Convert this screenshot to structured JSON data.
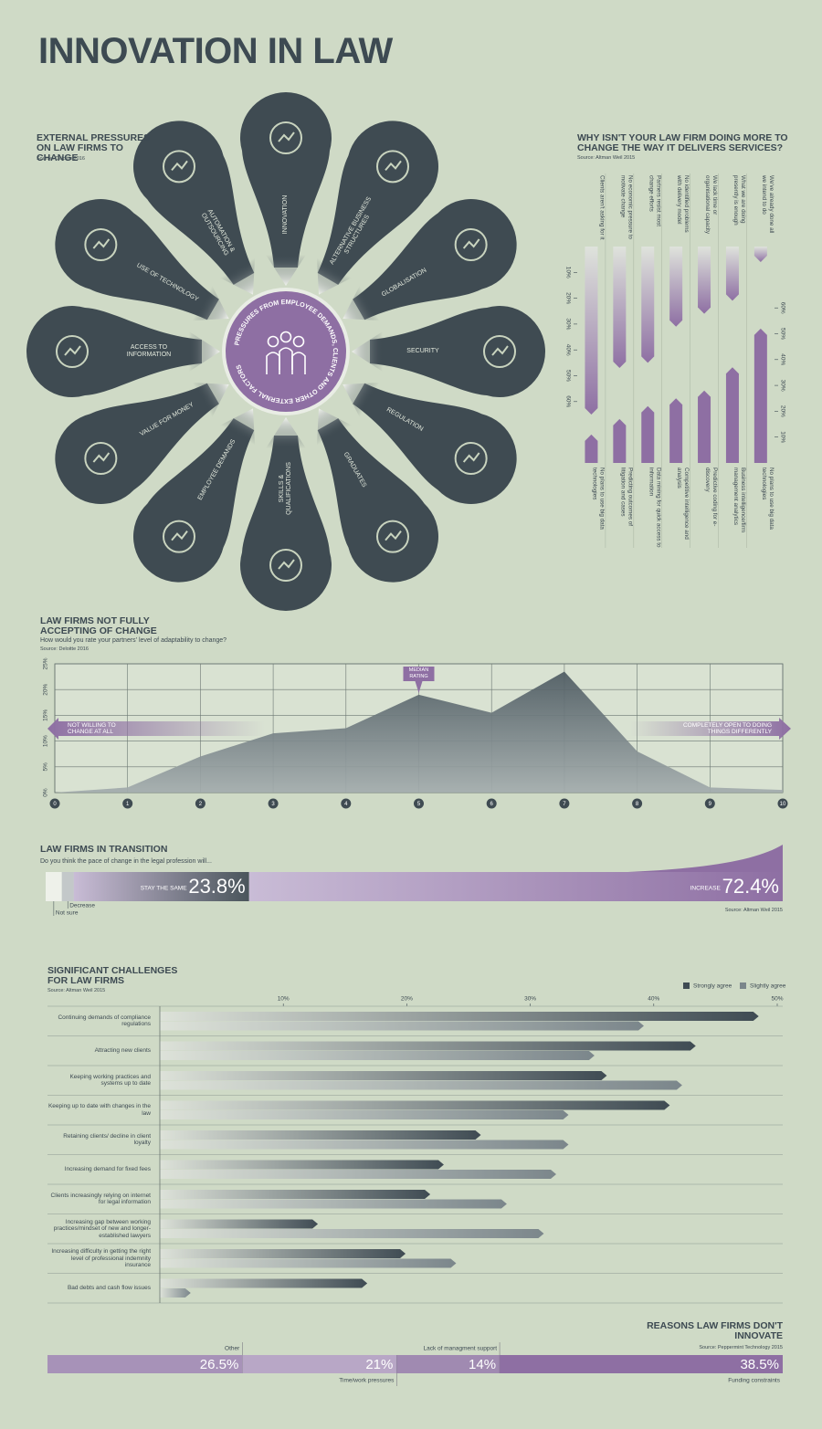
{
  "title": "INNOVATION IN LAW",
  "pressures": {
    "title": "EXTERNAL PRESSURES ON LAW FIRMS TO CHANGE",
    "source": "Source: Deloitte 2016",
    "center": "PRESSURES FROM EMPLOYEE DEMANDS, CLIENTS AND OTHER EXTERNAL FACTORS",
    "items": [
      "INNOVATION",
      "ALTERNATIVE BUSINESS STRUCTURES",
      "GLOBALISATION",
      "SECURITY",
      "REGULATION",
      "GRADUATES",
      "SKILLS & QUALIFICATIONS",
      "EMPLOYEE DEMANDS",
      "VALUE FOR MONEY",
      "ACCESS TO INFORMATION",
      "USE OF TECHNOLOGY",
      "AUTOMATION & OUTSOURCING"
    ]
  },
  "chart_data": [
    {
      "type": "diverging_bar",
      "title": "WHY ISN'T YOUR LAW FIRM DOING MORE TO CHANGE THE WAY IT DELIVERS SERVICES?",
      "source": "Source: Altman Weil 2015",
      "categories": [
        "Clients aren't asking for it",
        "No economic pressure to motivate change",
        "Partners resist most change efforts",
        "No identified problems with delivery model",
        "We lack time or organisational capacity",
        "What we are doing presently is enough",
        "We've already done all we intend to do"
      ],
      "values": [
        65,
        47,
        45,
        31,
        26,
        21,
        6
      ],
      "color": "#8e6fa3",
      "ylim": [
        0,
        70
      ],
      "yticks": [
        {
          "value": 10,
          "label": "10%"
        },
        {
          "value": 20,
          "label": "20%"
        },
        {
          "value": 30,
          "label": "30%"
        },
        {
          "value": 40,
          "label": "40%"
        },
        {
          "value": 50,
          "label": "50%"
        },
        {
          "value": 60,
          "label": "60%"
        }
      ],
      "categories2": [
        "No plans to use big data technologies",
        "Predicting outcomes of litigation and cases",
        "Data mining for quick access to information",
        "Competitive intelligence and analysis",
        "Predictive coding for e-discovery",
        "Business intelligence/firm management analytics",
        "No plans to use big data technologies"
      ],
      "values2": [
        11,
        17,
        22,
        25,
        28,
        37,
        52
      ],
      "y2lim": [
        0,
        60
      ],
      "y2ticks": [
        {
          "value": 10,
          "label": "10%"
        },
        {
          "value": 20,
          "label": "20%"
        },
        {
          "value": 30,
          "label": "30%"
        },
        {
          "value": 40,
          "label": "40%"
        },
        {
          "value": 50,
          "label": "50%"
        },
        {
          "value": 60,
          "label": "60%"
        }
      ]
    },
    {
      "type": "area",
      "title": "LAW FIRMS NOT FULLY ACCEPTING OF CHANGE",
      "subtitle": "How would you rate your partners' level of adaptability to change?",
      "source": "Source: Deloitte 2016",
      "x": [
        0,
        1,
        2,
        3,
        4,
        5,
        6,
        7,
        8,
        9,
        10
      ],
      "values": [
        0,
        1,
        7,
        11.5,
        12.5,
        19,
        15.5,
        23.5,
        8,
        1,
        0.5
      ],
      "color": "#4d5a61",
      "xlim": [
        0,
        10
      ],
      "xticks": [
        0,
        1,
        2,
        3,
        4,
        5,
        6,
        7,
        8,
        9,
        10
      ],
      "ylim": [
        0,
        25
      ],
      "yticks": [
        {
          "value": 0,
          "label": "0%"
        },
        {
          "value": 5,
          "label": "5%"
        },
        {
          "value": 10,
          "label": "10%"
        },
        {
          "value": 15,
          "label": "15%"
        },
        {
          "value": 20,
          "label": "20%"
        },
        {
          "value": 25,
          "label": "25%"
        }
      ],
      "grid": true,
      "annotations": [
        "MEDIAN RATING",
        "NOT WILLING TO CHANGE AT ALL",
        "COMPLETELY OPEN TO DOING THINGS DIFFERENTLY"
      ]
    },
    {
      "type": "stacked_bar",
      "title": "LAW FIRMS IN TRANSITION",
      "subtitle": "Do you think the pace of change in the legal profession will...",
      "source": "Source: Altman Weil 2015",
      "xlim": [
        0,
        100
      ],
      "series": [
        {
          "name": "Not sure",
          "color": "#eef1ea",
          "values": [
            2.2
          ]
        },
        {
          "name": "Decrease",
          "color": "#c3c8c9",
          "values": [
            1.6
          ]
        },
        {
          "name": "STAY THE SAME",
          "color": "#4a555b",
          "values": [
            23.8
          ],
          "value_labels": [
            "23.8%"
          ]
        },
        {
          "name": "INCREASE",
          "color": "#8e6fa3",
          "values": [
            72.4
          ],
          "value_labels": [
            "72.4%"
          ]
        }
      ]
    },
    {
      "type": "grouped_hbar",
      "title": "SIGNIFICANT CHALLENGES FOR LAW FIRMS",
      "source": "Source: Altman Weil 2015",
      "categories": [
        "Continuing demands of compliance regulations",
        "Attracting new clients",
        "Keeping working practices and systems up to date",
        "Keeping up to date with changes in the law",
        "Retaining clients/ decline in client loyalty",
        "Increasing demand for fixed fees",
        "Clients increasingly relying on internet for legal information",
        "Increasing gap between working practices/mindset of new and longer-established lawyers",
        "Increasing difficulty in getting the right level of professional indemnity insurance",
        "Bad debts and cash flow issues"
      ],
      "series": [
        {
          "name": "Strongly agree",
          "color": "#3f4b53",
          "values": [
            48.5,
            43.4,
            36.2,
            41.3,
            26,
            23,
            21.9,
            12.8,
            19.9,
            16.8
          ]
        },
        {
          "name": "Slightly agree",
          "color": "#7b868b",
          "values": [
            39.2,
            35.2,
            42.3,
            33.1,
            33.1,
            32.1,
            28.1,
            31.1,
            24,
            2.5
          ]
        }
      ],
      "xlim": [
        0,
        50
      ],
      "xticks": [
        {
          "value": 10,
          "label": "10%"
        },
        {
          "value": 20,
          "label": "20%"
        },
        {
          "value": 30,
          "label": "30%"
        },
        {
          "value": 40,
          "label": "40%"
        },
        {
          "value": 50,
          "label": "50%"
        }
      ],
      "legend": "top-right"
    },
    {
      "type": "stacked_bar",
      "title": "REASONS LAW FIRMS DON'T INNOVATE",
      "source": "Source: Peppermint Technology 2015",
      "xlim": [
        0,
        100
      ],
      "series": [
        {
          "name": "Other",
          "color": "#a792b8",
          "values": [
            26.5
          ],
          "value_labels": [
            "26.5%"
          ]
        },
        {
          "name": "Time/work pressures",
          "color": "#b8a7c6",
          "values": [
            21
          ],
          "value_labels": [
            "21%"
          ]
        },
        {
          "name": "Lack of managment support",
          "color": "#a08ab1",
          "values": [
            14
          ],
          "value_labels": [
            "14%"
          ]
        },
        {
          "name": "Funding constraints",
          "color": "#8e6fa3",
          "values": [
            38.5
          ],
          "value_labels": [
            "38.5%"
          ]
        }
      ]
    }
  ]
}
